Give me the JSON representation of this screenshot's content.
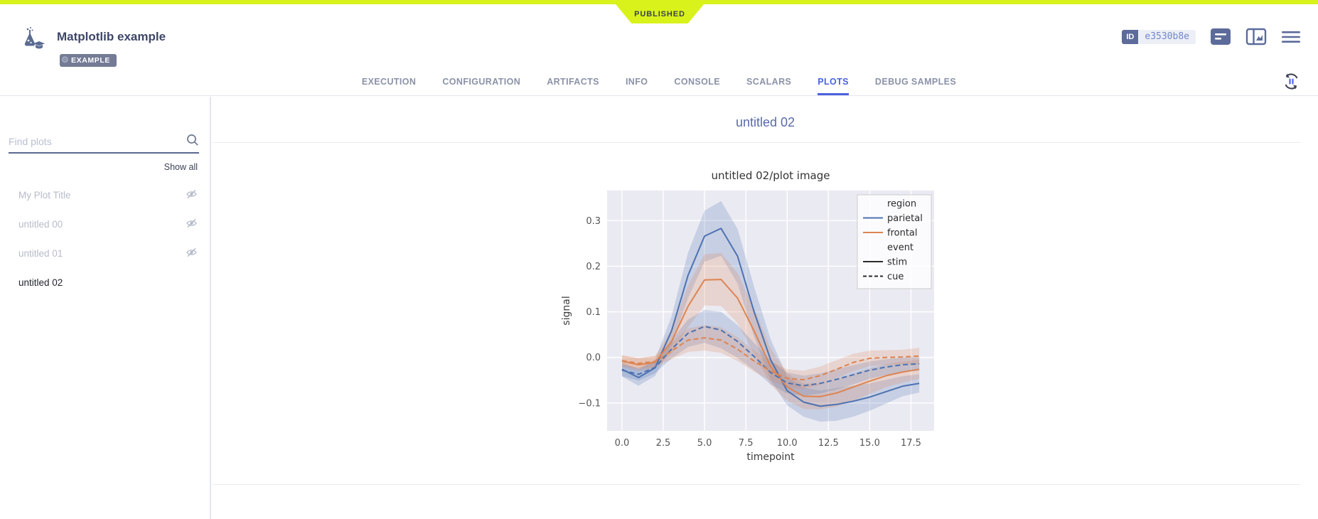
{
  "header": {
    "status_ribbon": "PUBLISHED",
    "accent_color": "#d9f21b",
    "title": "Matplotlib example",
    "tag": "EXAMPLE",
    "id_label": "ID",
    "id_value": "e3530b8e"
  },
  "icons": {
    "logo": "flask-graduation-cap",
    "tag_gear": "⚙",
    "comment": "notes-panel",
    "panel": "chart-side-panel",
    "menu": "hamburger",
    "auto_refresh": "refresh-pause",
    "search": "magnifier",
    "hidden_plot": "eye-off"
  },
  "tabs": {
    "items": [
      {
        "label": "EXECUTION",
        "active": false
      },
      {
        "label": "CONFIGURATION",
        "active": false
      },
      {
        "label": "ARTIFACTS",
        "active": false
      },
      {
        "label": "INFO",
        "active": false
      },
      {
        "label": "CONSOLE",
        "active": false
      },
      {
        "label": "SCALARS",
        "active": false
      },
      {
        "label": "PLOTS",
        "active": true
      },
      {
        "label": "DEBUG SAMPLES",
        "active": false
      }
    ],
    "active_color": "#4b62e0"
  },
  "sidebar": {
    "search_placeholder": "Find plots",
    "show_all": "Show all",
    "plots": [
      {
        "label": "My Plot Title",
        "hidden": true
      },
      {
        "label": "untitled 00",
        "hidden": true
      },
      {
        "label": "untitled 01",
        "hidden": true
      },
      {
        "label": "untitled 02",
        "hidden": false,
        "selected": true
      }
    ]
  },
  "main": {
    "section_title": "untitled 02"
  },
  "chart_data": {
    "type": "line",
    "title": "untitled 02/plot image",
    "xlabel": "timepoint",
    "ylabel": "signal",
    "xlim": [
      -0.9,
      18.9
    ],
    "ylim": [
      -0.161,
      0.366
    ],
    "xticks": [
      0,
      2.5,
      5,
      7.5,
      10,
      12.5,
      15,
      17.5
    ],
    "xtick_labels": [
      "0.0",
      "2.5",
      "5.0",
      "7.5",
      "10.0",
      "12.5",
      "15.0",
      "17.5"
    ],
    "yticks": [
      0.3,
      0.2,
      0.1,
      0.0,
      -0.1
    ],
    "ytick_labels": [
      "0.3",
      "0.2",
      "0.1",
      "0.0",
      "−0.1"
    ],
    "background": "#eaeaf2",
    "grid": "#ffffff",
    "x": [
      0,
      1,
      2,
      3,
      4,
      5,
      6,
      7,
      8,
      9,
      10,
      11,
      12,
      13,
      14,
      15,
      16,
      17,
      18
    ],
    "series": [
      {
        "name": "parietal-stim",
        "color": "#4c72b0",
        "dash": "solid",
        "values": [
          -0.026,
          -0.044,
          -0.023,
          0.058,
          0.18,
          0.266,
          0.283,
          0.222,
          0.1,
          -0.005,
          -0.073,
          -0.098,
          -0.107,
          -0.103,
          -0.096,
          -0.087,
          -0.075,
          -0.063,
          -0.057
        ],
        "ci": [
          0.016,
          0.018,
          0.018,
          0.032,
          0.05,
          0.056,
          0.06,
          0.06,
          0.055,
          0.045,
          0.032,
          0.032,
          0.034,
          0.036,
          0.034,
          0.03,
          0.026,
          0.022,
          0.02
        ]
      },
      {
        "name": "frontal-stim",
        "color": "#dd8452",
        "dash": "solid",
        "values": [
          -0.008,
          -0.016,
          -0.011,
          0.035,
          0.112,
          0.17,
          0.171,
          0.13,
          0.058,
          -0.02,
          -0.065,
          -0.085,
          -0.086,
          -0.078,
          -0.065,
          -0.052,
          -0.04,
          -0.032,
          -0.026
        ],
        "ci": [
          0.013,
          0.014,
          0.014,
          0.026,
          0.046,
          0.056,
          0.058,
          0.055,
          0.05,
          0.04,
          0.03,
          0.028,
          0.028,
          0.03,
          0.03,
          0.028,
          0.025,
          0.023,
          0.021
        ]
      },
      {
        "name": "parietal-cue",
        "color": "#4c72b0",
        "dash": "dashed",
        "values": [
          -0.028,
          -0.037,
          -0.022,
          0.018,
          0.053,
          0.068,
          0.06,
          0.035,
          0.002,
          -0.033,
          -0.056,
          -0.062,
          -0.057,
          -0.048,
          -0.038,
          -0.028,
          -0.021,
          -0.016,
          -0.014
        ],
        "ci": [
          0.013,
          0.014,
          0.013,
          0.02,
          0.03,
          0.036,
          0.04,
          0.036,
          0.03,
          0.026,
          0.023,
          0.022,
          0.022,
          0.022,
          0.021,
          0.019,
          0.017,
          0.016,
          0.015
        ]
      },
      {
        "name": "frontal-cue",
        "color": "#dd8452",
        "dash": "dashed",
        "values": [
          -0.007,
          -0.013,
          -0.009,
          0.014,
          0.038,
          0.043,
          0.038,
          0.018,
          -0.008,
          -0.03,
          -0.046,
          -0.049,
          -0.04,
          -0.026,
          -0.011,
          -0.002,
          0.0,
          0.001,
          0.003
        ],
        "ci": [
          0.011,
          0.012,
          0.012,
          0.018,
          0.026,
          0.028,
          0.028,
          0.026,
          0.023,
          0.021,
          0.02,
          0.02,
          0.02,
          0.02,
          0.019,
          0.017,
          0.016,
          0.016,
          0.018
        ]
      }
    ],
    "legend": {
      "position": "upper right",
      "entries": [
        {
          "label": "region",
          "type": "header"
        },
        {
          "label": "parietal",
          "type": "line",
          "color": "#4c72b0",
          "dash": "solid"
        },
        {
          "label": "frontal",
          "type": "line",
          "color": "#dd8452",
          "dash": "solid"
        },
        {
          "label": "event",
          "type": "header"
        },
        {
          "label": "stim",
          "type": "line",
          "color": "#2b2b2b",
          "dash": "solid"
        },
        {
          "label": "cue",
          "type": "line",
          "color": "#2b2b2b",
          "dash": "dashed"
        }
      ]
    }
  }
}
